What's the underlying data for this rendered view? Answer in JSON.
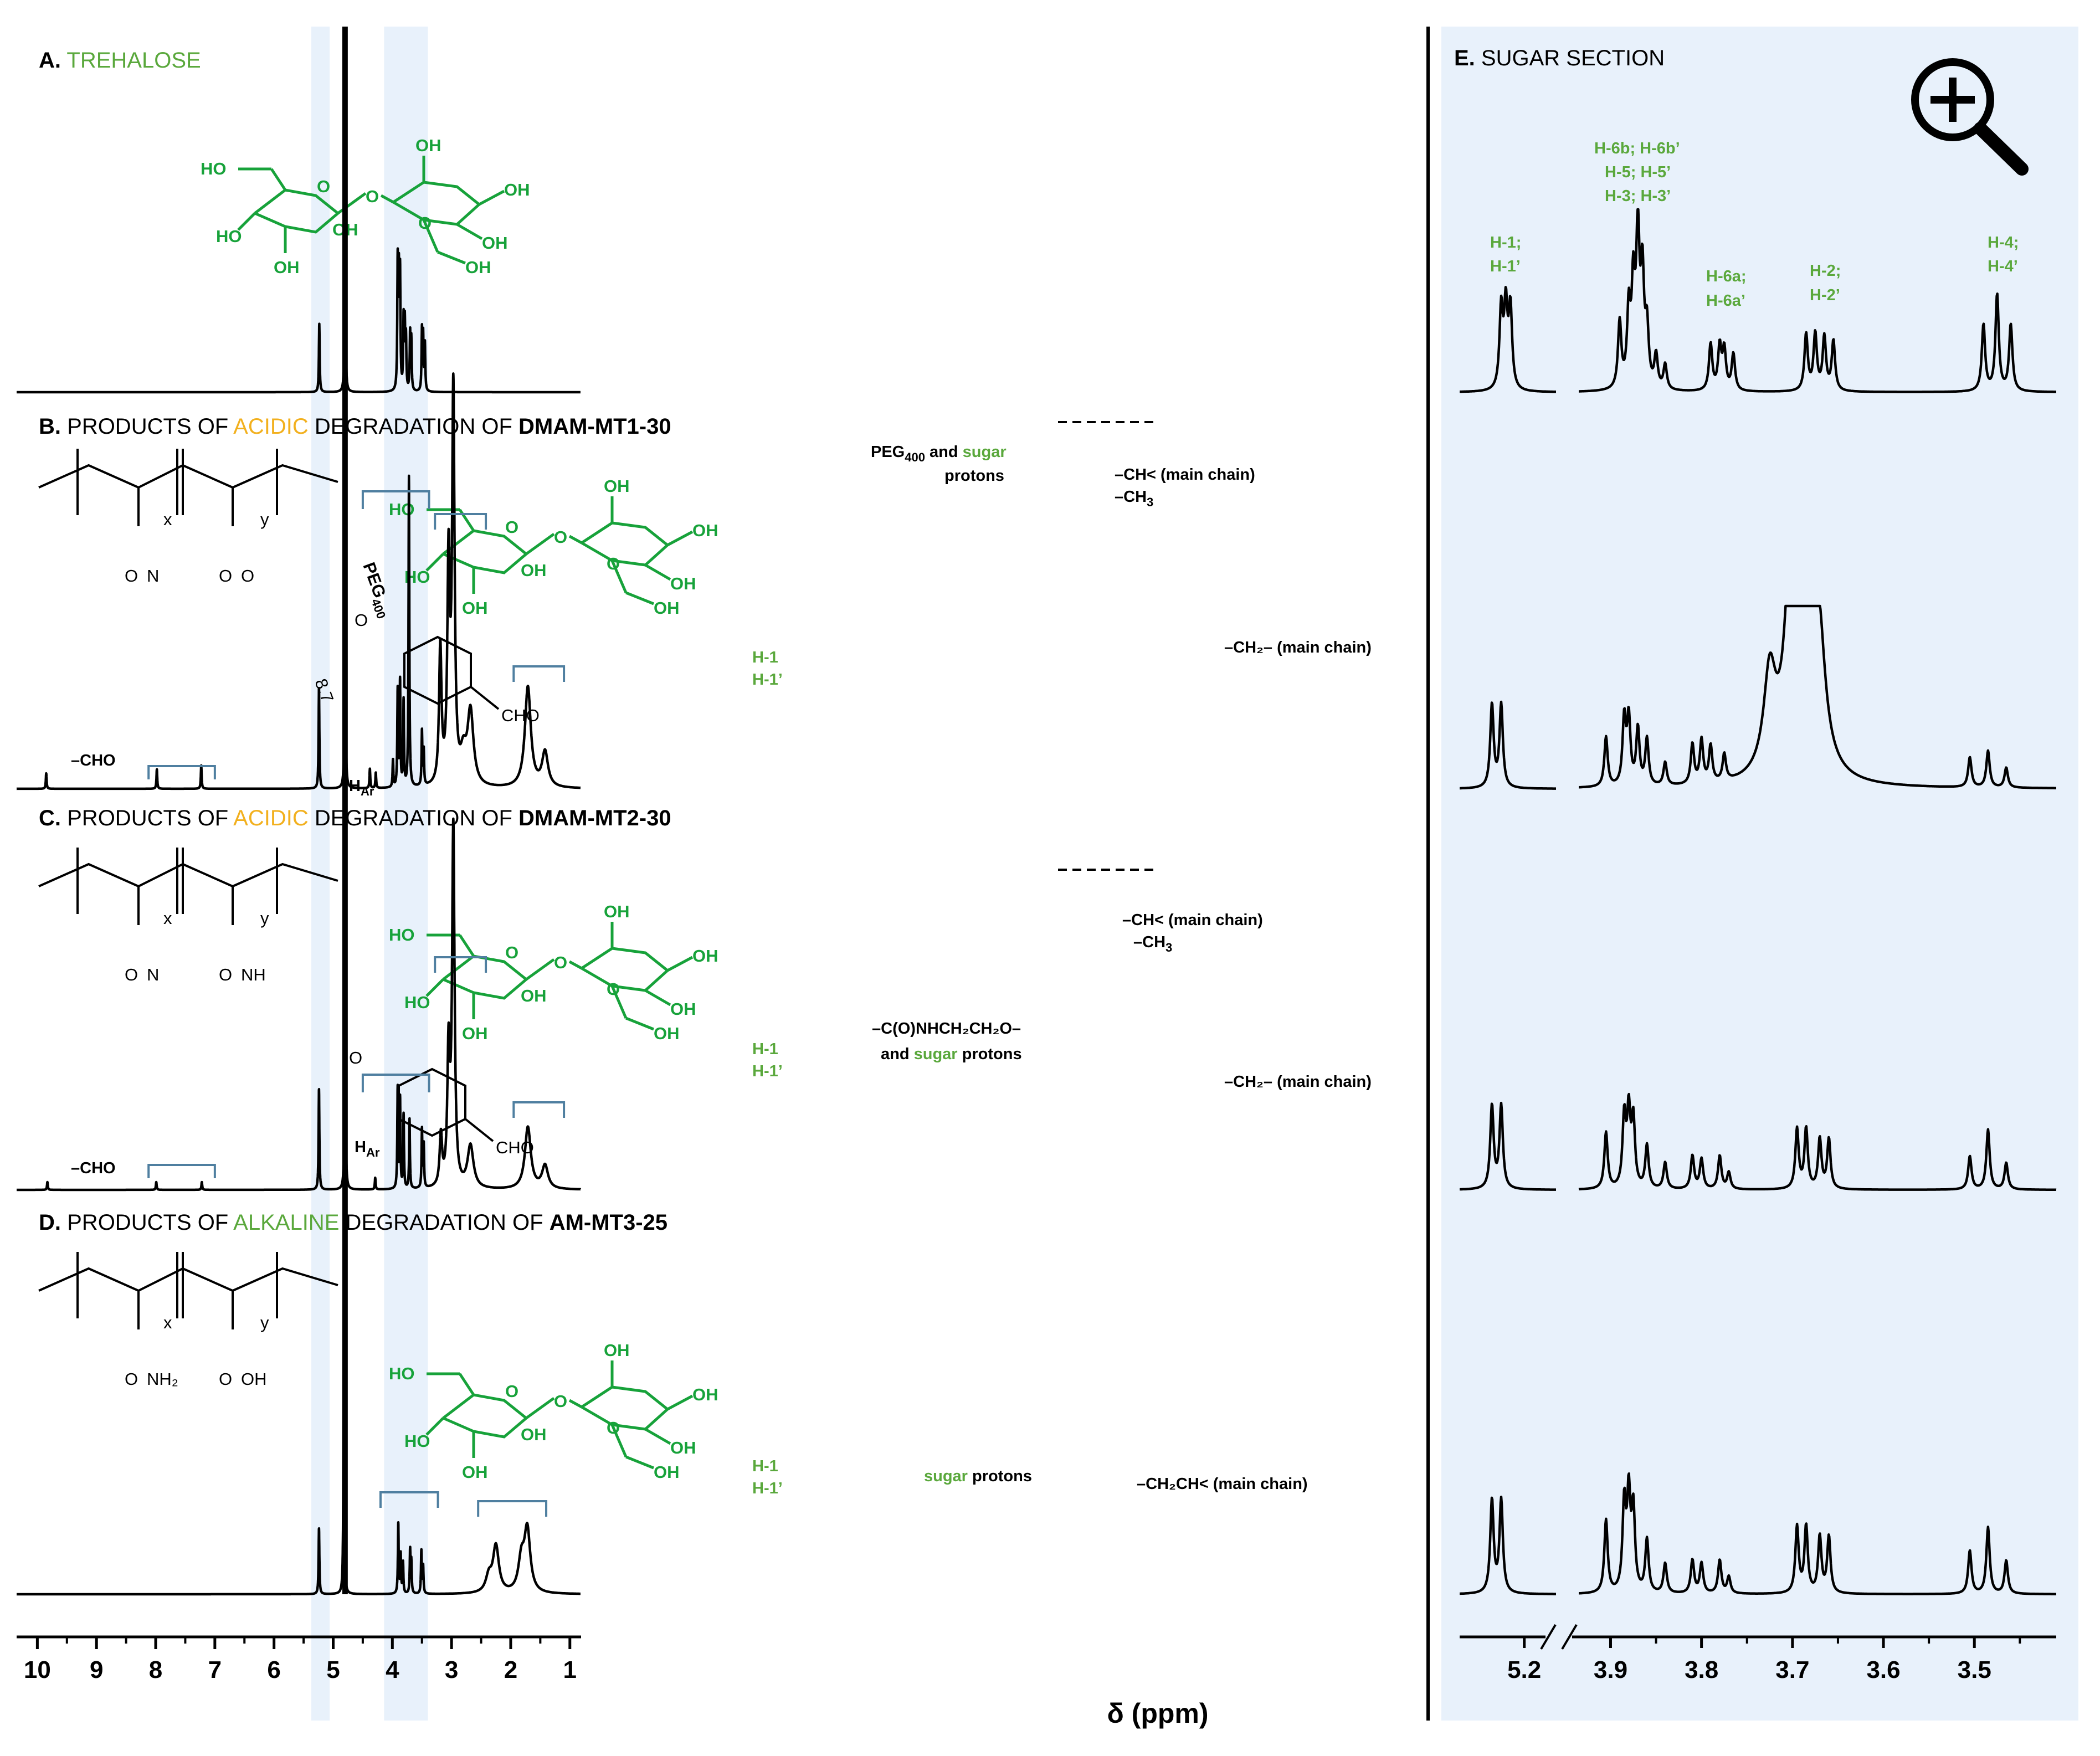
{
  "colors": {
    "band": "#e8f1fb",
    "bracket": "#4f7fa0",
    "label_green": "#5aa83c",
    "molecule_green": "#17a23a",
    "acidic_orange": "#f2b01e",
    "alkaline_green": "#5aa83c"
  },
  "panels": {
    "A": {
      "letter": "A.",
      "title": "TREHALOSE"
    },
    "B": {
      "letter": "B.",
      "pre": "PRODUCTS OF",
      "colored": "ACIDIC",
      "post": "DEGRADATION OF",
      "polymer": "DMAM-MT1-30"
    },
    "C": {
      "letter": "C.",
      "pre": "PRODUCTS OF",
      "colored": "ACIDIC",
      "post": "DEGRADATION OF",
      "polymer": "DMAM-MT2-30"
    },
    "D": {
      "letter": "D.",
      "pre": "PRODUCTS OF",
      "colored": "ALKALINE",
      "post": "DEGRADATION OF",
      "polymer": "AM-MT3-25"
    },
    "E": {
      "letter": "E.",
      "title": "SUGAR SECTION"
    }
  },
  "annotations": {
    "B": {
      "cho": "–CHO",
      "har": "H",
      "har_sub": "Ar",
      "h1": "H-1",
      "h1p": "H-1’",
      "peg_a": "PEG",
      "peg_sub": "400",
      "peg_b": "and",
      "peg_sugar": "sugar",
      "peg_c": "protons",
      "ch_main": "–CH< (main chain)",
      "ch3": "–CH",
      "ch3_sub": "3",
      "ch2_main": "–CH₂– (main chain)"
    },
    "C": {
      "cho": "–CHO",
      "har": "H",
      "har_sub": "Ar",
      "h1": "H-1",
      "h1p": "H-1’",
      "amide_a": "–C(O)NHCH₂CH₂O–",
      "amide_b": "and",
      "amide_sugar": "sugar",
      "amide_c": "protons",
      "ch_main": "–CH< (main chain)",
      "ch3": "–CH",
      "ch3_sub": "3",
      "ch2_main": "–CH₂– (main chain)"
    },
    "D": {
      "h1": "H-1",
      "h1p": "H-1’",
      "sugar": "sugar",
      "protons": "protons",
      "ch2ch_main": "–CH₂CH< (main chain)"
    },
    "E": {
      "h1": "H-1;",
      "h1p": "H-1’",
      "h6b": "H-6b; H-6b’",
      "h5": "H-5; H-5’",
      "h3": "H-3; H-3’",
      "h6a": "H-6a;",
      "h6ap": "H-6a’",
      "h2": "H-2;",
      "h2p": "H-2’",
      "h4": "H-4;",
      "h4p": "H-4’"
    }
  },
  "molecule": {
    "HO": "HO",
    "OH": "OH",
    "O": "O",
    "N": "N",
    "NH": "NH",
    "NH2": "NH₂",
    "CHO": "CHO",
    "x": "x",
    "y": "y",
    "peg": "PEG",
    "peg_sub": "400",
    "n": "8.7"
  },
  "chart_data": {
    "type": "line",
    "xlabel": "δ (ppm)",
    "main_axis": {
      "xlim": [
        10.35,
        0.82
      ],
      "ticks": [
        10,
        9,
        8,
        7,
        6,
        5,
        4,
        3,
        2,
        1
      ],
      "highlight_bands_ppm": [
        [
          5.37,
          5.06
        ],
        [
          4.14,
          3.4
        ]
      ]
    },
    "zoom_axis": {
      "segments": [
        [
          5.27,
          5.165
        ],
        [
          3.935,
          3.41
        ]
      ],
      "ticks": [
        5.2,
        3.9,
        3.8,
        3.7,
        3.6,
        3.5
      ],
      "tick_labels": [
        "5.2",
        "3.9",
        "3.8",
        "3.7",
        "3.6",
        "3.5"
      ]
    },
    "series": [
      {
        "name": "A. TREHALOSE",
        "peaks_ppm_height": [
          [
            5.235,
            0.22
          ],
          [
            4.8,
            1.15
          ],
          [
            3.91,
            0.4
          ],
          [
            3.89,
            0.34
          ],
          [
            3.87,
            0.36
          ],
          [
            3.81,
            0.22
          ],
          [
            3.79,
            0.2
          ],
          [
            3.77,
            0.16
          ],
          [
            3.7,
            0.18
          ],
          [
            3.68,
            0.16
          ],
          [
            3.5,
            0.19
          ],
          [
            3.48,
            0.17
          ],
          [
            3.45,
            0.15
          ]
        ]
      },
      {
        "name": "B. DMAM-MT1-30",
        "peaks_ppm_height": [
          [
            9.85,
            0.04
          ],
          [
            7.98,
            0.05
          ],
          [
            7.23,
            0.06
          ],
          [
            5.24,
            0.26
          ],
          [
            4.8,
            1.15
          ],
          [
            4.38,
            0.05
          ],
          [
            4.28,
            0.04
          ],
          [
            3.99,
            0.07
          ],
          [
            3.91,
            0.25
          ],
          [
            3.87,
            0.27
          ],
          [
            3.81,
            0.22
          ],
          [
            3.72,
            0.8
          ],
          [
            3.5,
            0.14
          ],
          [
            3.47,
            0.09
          ],
          [
            3.19,
            0.35
          ],
          [
            3.05,
            0.56
          ],
          [
            2.97,
            1.0
          ],
          [
            2.8,
            0.07
          ],
          [
            2.68,
            0.19
          ],
          [
            1.71,
            0.26
          ],
          [
            1.42,
            0.09
          ]
        ]
      },
      {
        "name": "C. DMAM-MT2-30",
        "peaks_ppm_height": [
          [
            9.83,
            0.02
          ],
          [
            7.99,
            0.02
          ],
          [
            7.22,
            0.02
          ],
          [
            5.24,
            0.26
          ],
          [
            4.8,
            1.15
          ],
          [
            4.29,
            0.03
          ],
          [
            3.91,
            0.26
          ],
          [
            3.87,
            0.23
          ],
          [
            3.81,
            0.19
          ],
          [
            3.71,
            0.18
          ],
          [
            3.5,
            0.15
          ],
          [
            3.47,
            0.11
          ],
          [
            3.18,
            0.13
          ],
          [
            3.05,
            0.34
          ],
          [
            2.97,
            0.92
          ],
          [
            2.68,
            0.11
          ],
          [
            1.71,
            0.16
          ],
          [
            1.42,
            0.06
          ]
        ]
      },
      {
        "name": "D. AM-MT3-25",
        "peaks_ppm_height": [
          [
            5.24,
            0.17
          ],
          [
            4.82,
            1.15
          ],
          [
            3.9,
            0.18
          ],
          [
            3.86,
            0.1
          ],
          [
            3.82,
            0.08
          ],
          [
            3.7,
            0.11
          ],
          [
            3.68,
            0.08
          ],
          [
            3.51,
            0.11
          ],
          [
            3.48,
            0.07
          ],
          [
            2.37,
            0.04
          ],
          [
            2.25,
            0.12
          ],
          [
            1.82,
            0.08
          ],
          [
            1.72,
            0.16
          ]
        ]
      }
    ]
  }
}
